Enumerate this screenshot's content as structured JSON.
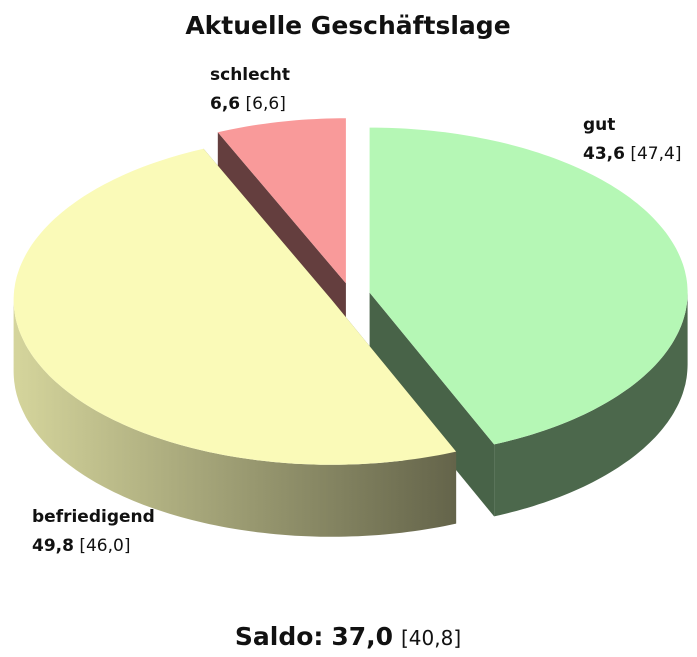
{
  "chart_data": {
    "type": "pie3d",
    "title": "Aktuelle Geschäftslage",
    "categories": [
      "gut",
      "befriedigend",
      "schlecht"
    ],
    "values": [
      43.6,
      49.8,
      6.6
    ],
    "value_labels": [
      "43,6",
      "49,8",
      "6,6"
    ],
    "previous_labels": [
      "[47,4]",
      "[46,0]",
      "[6,6]"
    ],
    "colors": [
      "#b5f7b5",
      "#fafab8",
      "#f99a9a"
    ],
    "saldo": {
      "label": "Saldo:",
      "value_label": "37,0",
      "previous_label": "[40,8]"
    }
  }
}
